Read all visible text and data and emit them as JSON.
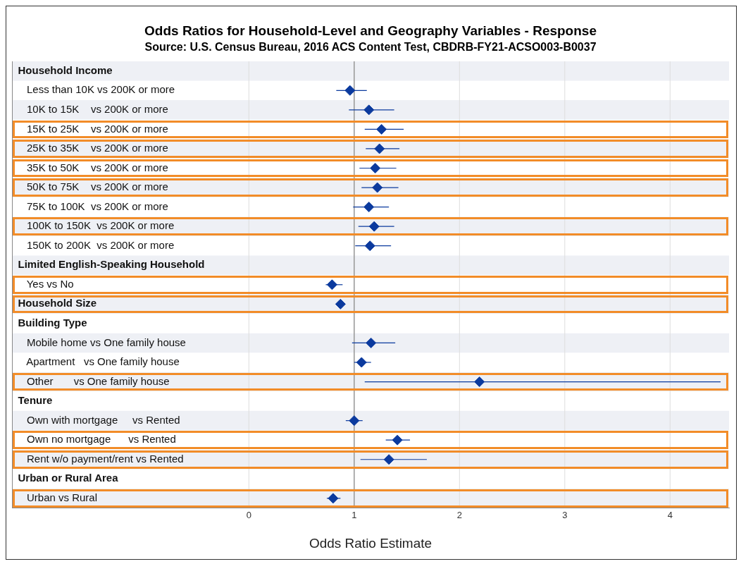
{
  "chart_data": {
    "type": "scatter",
    "title": "Odds Ratios for Household-Level and Geography Variables - Response",
    "subtitle": "Source: U.S. Census Bureau, 2016 ACS Content Test, CBDRB-FY21-ACSO003-B0037",
    "xlabel": "Odds Ratio Estimate",
    "categories": [
      "Household Income",
      "  Less than 10K vs 200K or more",
      "  10K to 15K    vs 200K or more",
      "  15K to 25K    vs 200K or more",
      "  25K to 35K    vs 200K or more",
      "  35K to 50K    vs 200K or more",
      "  50K to 75K    vs 200K or more",
      "  75K to 100K  vs 200K or more",
      "  100K to 150K  vs 200K or more",
      "  150K to 200K  vs 200K or more",
      "Limited English-Speaking Household",
      "  Yes vs No",
      "Household Size",
      "Building Type",
      "  Mobile home vs One family house",
      "  Apartment   vs One family house",
      "  Other       vs One family house",
      "Tenure",
      "  Own with mortgage     vs Rented",
      "  Own no mortgage      vs Rented",
      "  Rent w/o payment/rent vs Rented",
      "Urban or Rural Area",
      "  Urban vs Rural"
    ],
    "series": [
      {
        "color": "#0b3a9e",
        "marker": "diamond",
        "values": [
          null,
          0.96,
          1.14,
          1.26,
          1.24,
          1.2,
          1.22,
          1.14,
          1.19,
          1.15,
          null,
          0.79,
          0.87,
          null,
          1.16,
          1.07,
          2.19,
          null,
          1.0,
          1.41,
          1.33,
          null,
          0.8
        ],
        "errors": [
          null,
          [
            0.83,
            1.12
          ],
          [
            0.95,
            1.38
          ],
          [
            1.1,
            1.47
          ],
          [
            1.11,
            1.43
          ],
          [
            1.05,
            1.4
          ],
          [
            1.07,
            1.42
          ],
          [
            0.99,
            1.33
          ],
          [
            1.04,
            1.38
          ],
          [
            1.01,
            1.35
          ],
          null,
          [
            0.73,
            0.89
          ],
          [
            0.84,
            0.91
          ],
          null,
          [
            0.98,
            1.39
          ],
          [
            1.0,
            1.16
          ],
          [
            1.1,
            4.48
          ],
          null,
          [
            0.92,
            1.08
          ],
          [
            1.3,
            1.53
          ],
          [
            1.06,
            1.69
          ],
          null,
          [
            0.74,
            0.87
          ]
        ]
      }
    ],
    "orientation": "horizontal",
    "xlim": [
      -2.25,
      4.56
    ],
    "xticks": [
      0,
      1,
      2,
      3,
      4
    ],
    "grid": "x",
    "legend": false,
    "ref_lines": [
      {
        "axis": "x",
        "value": 1,
        "color": "#999999"
      }
    ]
  }
}
